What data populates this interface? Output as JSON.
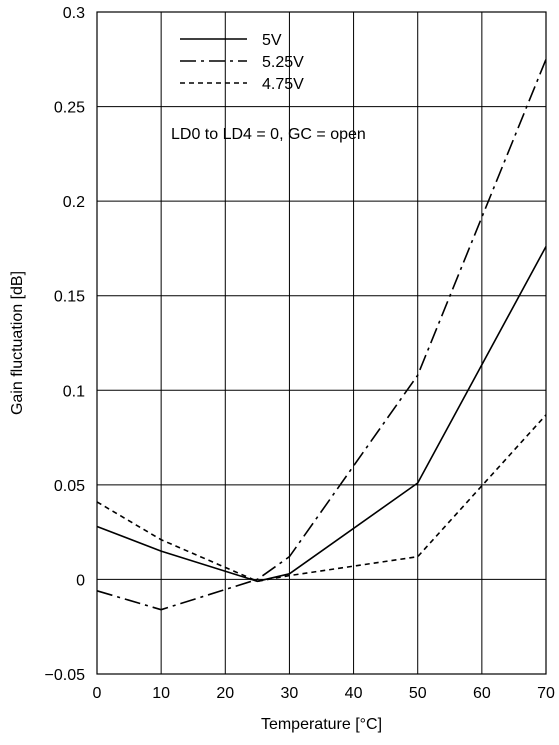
{
  "chart_data": {
    "type": "line",
    "title": "",
    "xlabel": "Temperature [°C]",
    "ylabel": "Gain fluctuation [dB]",
    "xlim": [
      0,
      70
    ],
    "ylim": [
      -0.05,
      0.3
    ],
    "xticks": [
      0,
      10,
      20,
      30,
      40,
      50,
      60,
      70
    ],
    "yticks": [
      -0.05,
      0,
      0.05,
      0.1,
      0.15,
      0.2,
      0.25,
      0.3
    ],
    "xtick_labels": [
      "0",
      "10",
      "20",
      "30",
      "40",
      "50",
      "60",
      "70"
    ],
    "ytick_labels": [
      "−0.05",
      "0",
      "0.05",
      "0.1",
      "0.15",
      "0.2",
      "0.25",
      "0.3"
    ],
    "grid": true,
    "legend_position": "top-left",
    "annotation": "LD0 to LD4 = 0, GC = open",
    "series": [
      {
        "name": "5V",
        "dash": "solid",
        "color": "#000000",
        "x": [
          0,
          10,
          25,
          30,
          50,
          70
        ],
        "y": [
          0.028,
          0.015,
          -0.001,
          0.003,
          0.051,
          0.176
        ]
      },
      {
        "name": "5.25V",
        "dash": "dash-dot",
        "color": "#000000",
        "x": [
          0,
          10,
          25,
          30,
          50,
          70
        ],
        "y": [
          -0.006,
          -0.016,
          0.0,
          0.012,
          0.108,
          0.275
        ]
      },
      {
        "name": "4.75V",
        "dash": "dashed",
        "color": "#000000",
        "x": [
          0,
          10,
          25,
          30,
          50,
          70
        ],
        "y": [
          0.041,
          0.021,
          -0.001,
          0.002,
          0.012,
          0.087
        ]
      }
    ]
  }
}
